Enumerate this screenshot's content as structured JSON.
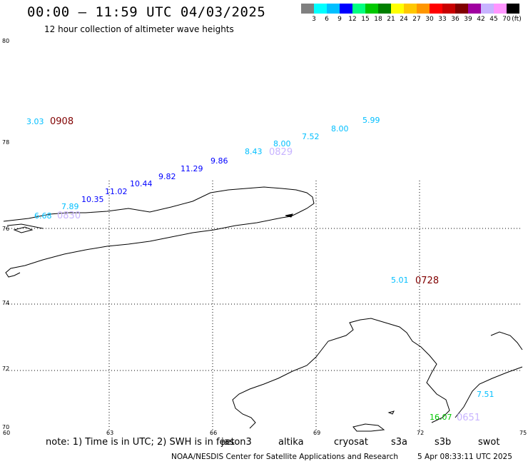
{
  "header": {
    "title": "00:00 – 11:59 UTC 04/03/2025",
    "subtitle": "12 hour collection of altimeter wave heights"
  },
  "legend": {
    "unit": "(ft)",
    "colors": [
      "#808080",
      "#00ffff",
      "#00bfff",
      "#0000ff",
      "#00ff80",
      "#00c800",
      "#008000",
      "#ffff00",
      "#ffc800",
      "#ff9600",
      "#ff0000",
      "#c80000",
      "#800000",
      "#a000a0",
      "#c8b4ff",
      "#ff96ff",
      "#000000"
    ],
    "ticks": [
      "3",
      "6",
      "9",
      "12",
      "15",
      "18",
      "21",
      "24",
      "27",
      "30",
      "33",
      "36",
      "39",
      "42",
      "45",
      "70"
    ]
  },
  "axes": {
    "lat_labels": [
      "80",
      "78",
      "76",
      "74",
      "72",
      "70"
    ],
    "lon_labels": [
      "60",
      "63",
      "66",
      "69",
      "72",
      "75"
    ]
  },
  "tracks": [
    {
      "time": "0908",
      "time_color": "#800000",
      "values": [
        {
          "v": "3.03",
          "color": "#00bfff"
        }
      ]
    },
    {
      "time": "0829",
      "time_color": "#c8b4ff",
      "values": [
        {
          "v": "5.99",
          "color": "#00bfff"
        },
        {
          "v": "8.00",
          "color": "#00bfff"
        },
        {
          "v": "7.52",
          "color": "#00bfff"
        },
        {
          "v": "8.00",
          "color": "#00bfff"
        },
        {
          "v": "8.43",
          "color": "#00bfff"
        },
        {
          "v": "9.86",
          "color": "#0000ff"
        },
        {
          "v": "11.29",
          "color": "#0000ff"
        },
        {
          "v": "9.82",
          "color": "#0000ff"
        },
        {
          "v": "10.44",
          "color": "#0000ff"
        },
        {
          "v": "11.02",
          "color": "#0000ff"
        },
        {
          "v": "10.35",
          "color": "#0000ff"
        },
        {
          "v": "7.89",
          "color": "#00bfff"
        },
        {
          "v": "6.68",
          "color": "#00bfff"
        }
      ]
    },
    {
      "time": "0830",
      "time_color": "#c8b4ff"
    },
    {
      "time": "0728",
      "time_color": "#800000",
      "values": [
        {
          "v": "5.01",
          "color": "#00bfff"
        }
      ]
    },
    {
      "time": "0651",
      "time_color": "#c8b4ff",
      "values": [
        {
          "v": "7.51",
          "color": "#00bfff"
        },
        {
          "v": "16.07",
          "color": "#00c800"
        }
      ]
    }
  ],
  "footer": {
    "note": "note: 1) Time is in UTC; 2) SWH is in feet",
    "satellites": [
      {
        "name": "jason3",
        "color": "#008000"
      },
      {
        "name": "altika",
        "color": "#ff9600"
      },
      {
        "name": "cryosat",
        "color": "#ff0000"
      },
      {
        "name": "s3a",
        "color": "#800000"
      },
      {
        "name": "s3b",
        "color": "#c8b4ff"
      },
      {
        "name": "swot",
        "color": "#ff96ff"
      }
    ],
    "credit": "NOAA/NESDIS Center for Satellite Applications and Research",
    "timestamp": "5 Apr 08:33:11 UTC 2025"
  }
}
